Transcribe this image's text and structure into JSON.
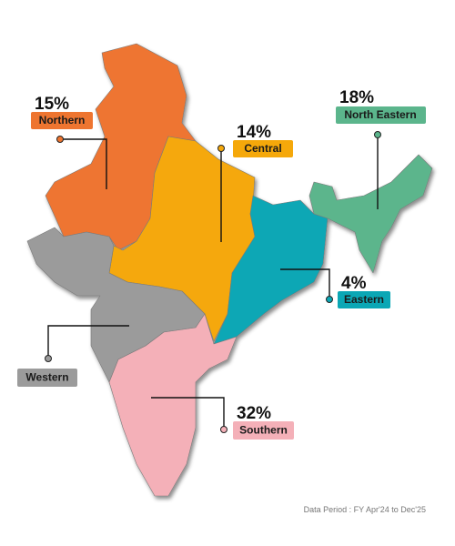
{
  "regions": [
    {
      "name": "Northern",
      "share": "15%"
    },
    {
      "name": "Central",
      "share": "14%"
    },
    {
      "name": "North Eastern",
      "share": "18%"
    },
    {
      "name": "Eastern",
      "share": "4%"
    },
    {
      "name": "Western"
    },
    {
      "name": "Southern",
      "share": "32%"
    }
  ],
  "footer": "Data Period : FY Apr'24 to Dec'25"
}
